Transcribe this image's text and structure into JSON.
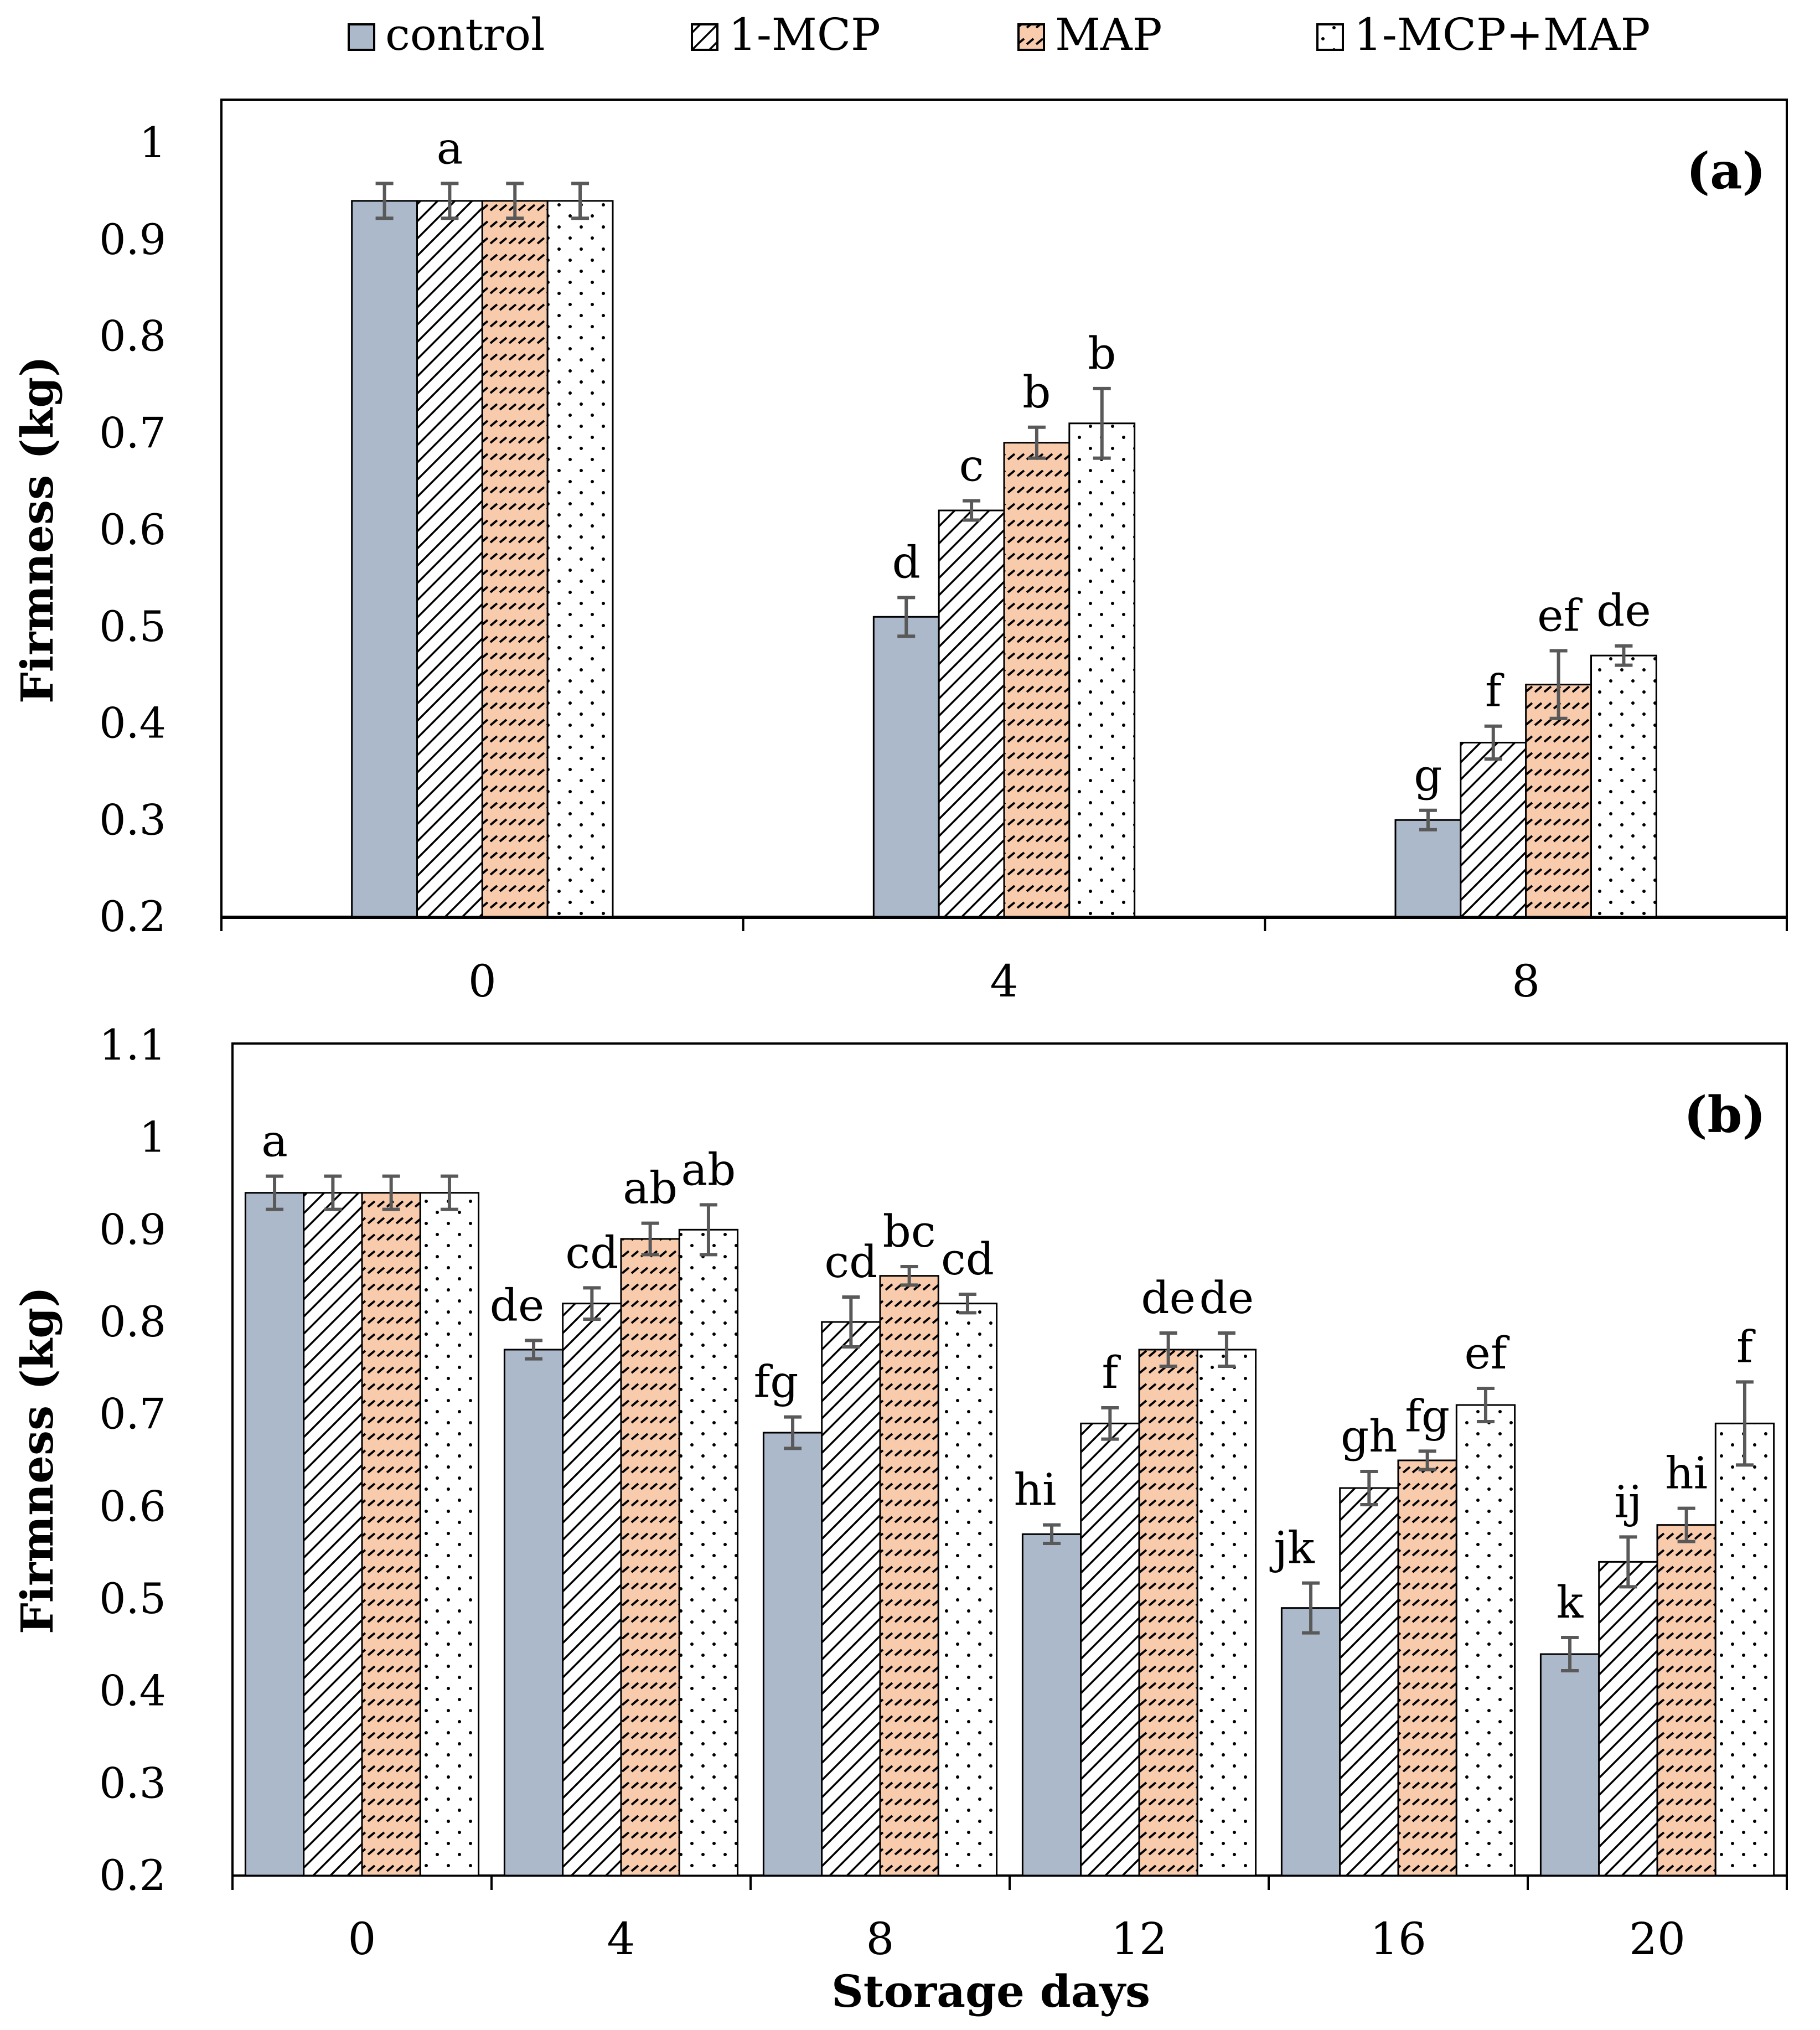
{
  "legend": {
    "entries": [
      {
        "name": "control",
        "swatch": "control"
      },
      {
        "name": "1-MCP",
        "swatch": "mcp"
      },
      {
        "name": "MAP",
        "swatch": "map"
      },
      {
        "name": "1-MCP+MAP",
        "swatch": "combo"
      }
    ]
  },
  "colors": {
    "control": "#acb9ca",
    "mcp_bg": "#ffffff",
    "mcp_line": "#000000",
    "map_bg": "#f8cbad",
    "map_line": "#000000",
    "combo_bg": "#ffffff",
    "combo_dot": "#000000",
    "error_bar": "#595959"
  },
  "chart_data": [
    {
      "type": "bar",
      "panel_label": "(a)",
      "ylabel": "Firmness (kg)",
      "xlabel": "",
      "ylim": [
        0.2,
        1.0
      ],
      "yticks": [
        "0.2",
        "0.3",
        "0.4",
        "0.5",
        "0.6",
        "0.7",
        "0.8",
        "0.9",
        "1"
      ],
      "categories": [
        "0",
        "4",
        "8"
      ],
      "series": [
        {
          "name": "control",
          "values": [
            0.94,
            0.51,
            0.3
          ],
          "errors": [
            0.018,
            0.02,
            0.01
          ],
          "letters": [
            "",
            "d",
            "g"
          ]
        },
        {
          "name": "1-MCP",
          "values": [
            0.94,
            0.62,
            0.38
          ],
          "errors": [
            0.018,
            0.01,
            0.017
          ],
          "letters": [
            "a",
            "c",
            "f"
          ]
        },
        {
          "name": "MAP",
          "values": [
            0.94,
            0.69,
            0.44
          ],
          "errors": [
            0.018,
            0.016,
            0.035
          ],
          "letters": [
            "",
            "b",
            "ef"
          ]
        },
        {
          "name": "1-MCP+MAP",
          "values": [
            0.94,
            0.71,
            0.47
          ],
          "errors": [
            0.018,
            0.036,
            0.01
          ],
          "letters": [
            "",
            "b",
            "de"
          ]
        }
      ]
    },
    {
      "type": "bar",
      "panel_label": "(b)",
      "ylabel": "Firmness (kg)",
      "xlabel": "Storage days",
      "ylim": [
        0.2,
        1.1
      ],
      "yticks": [
        "0.2",
        "0.3",
        "0.4",
        "0.5",
        "0.6",
        "0.7",
        "0.8",
        "0.9",
        "1",
        "1.1"
      ],
      "categories": [
        "0",
        "4",
        "8",
        "12",
        "16",
        "20"
      ],
      "series": [
        {
          "name": "control",
          "values": [
            0.94,
            0.77,
            0.68,
            0.57,
            0.49,
            0.44
          ],
          "errors": [
            0.018,
            0.01,
            0.017,
            0.01,
            0.027,
            0.018
          ],
          "letters": [
            "a",
            "de",
            "fg",
            "hi",
            "jk",
            "k"
          ]
        },
        {
          "name": "1-MCP",
          "values": [
            0.94,
            0.82,
            0.8,
            0.69,
            0.62,
            0.54
          ],
          "errors": [
            0.018,
            0.017,
            0.027,
            0.017,
            0.018,
            0.027
          ],
          "letters": [
            "",
            "cd",
            "cd",
            "f",
            "gh",
            "ij"
          ]
        },
        {
          "name": "MAP",
          "values": [
            0.94,
            0.89,
            0.85,
            0.77,
            0.65,
            0.58
          ],
          "errors": [
            0.018,
            0.017,
            0.01,
            0.018,
            0.01,
            0.018
          ],
          "letters": [
            "",
            "ab",
            "bc",
            "de",
            "fg",
            "hi"
          ]
        },
        {
          "name": "1-MCP+MAP",
          "values": [
            0.94,
            0.9,
            0.82,
            0.77,
            0.71,
            0.69
          ],
          "errors": [
            0.018,
            0.027,
            0.01,
            0.018,
            0.018,
            0.045
          ],
          "letters": [
            "",
            "ab",
            "cd",
            "de",
            "ef",
            "f"
          ]
        }
      ]
    }
  ]
}
